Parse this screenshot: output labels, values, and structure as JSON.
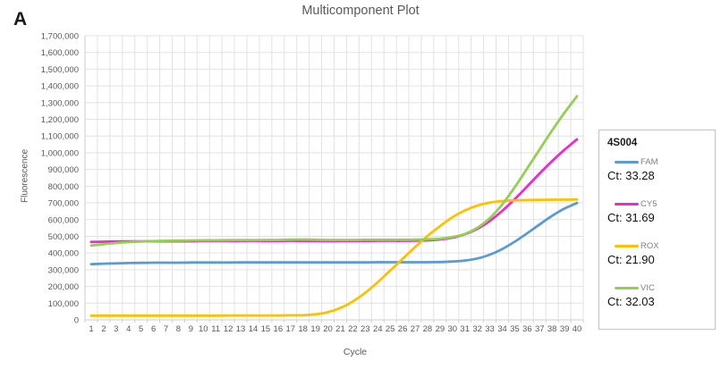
{
  "colors": {
    "title": "#595959",
    "axis_text": "#595959",
    "grid": "#E2E2E2",
    "axis_line": "#CDCDCD",
    "legend_border": "#C3C3C3"
  },
  "figure": {
    "panel_label": "A",
    "title": "Multicomponent Plot",
    "x_axis_label": "Cycle",
    "y_axis_label": "Fluorescence"
  },
  "legend": {
    "title": "4S004",
    "entries": [
      {
        "label": "FAM",
        "ct": "Ct: 33.28"
      },
      {
        "label": "CY5",
        "ct": "Ct: 31.69"
      },
      {
        "label": "ROX",
        "ct": "Ct: 21.90"
      },
      {
        "label": "VIC",
        "ct": "Ct: 32.03"
      }
    ]
  },
  "chart_data": {
    "type": "line",
    "title": "Multicomponent Plot",
    "xlabel": "Cycle",
    "ylabel": "Fluorescence",
    "grid": true,
    "legend_position": "right",
    "xlim": [
      0.5,
      40.5
    ],
    "ylim": [
      0,
      1700000
    ],
    "y_tick_step": 100000,
    "x": [
      1,
      2,
      3,
      4,
      5,
      6,
      7,
      8,
      9,
      10,
      11,
      12,
      13,
      14,
      15,
      16,
      17,
      18,
      19,
      20,
      21,
      22,
      23,
      24,
      25,
      26,
      27,
      28,
      29,
      30,
      31,
      32,
      33,
      34,
      35,
      36,
      37,
      38,
      39,
      40
    ],
    "series": [
      {
        "name": "FAM",
        "ct": 33.28,
        "color": "#5B9BD5",
        "values": [
          333000,
          336000,
          338000,
          340000,
          341000,
          342000,
          342000,
          342000,
          343000,
          343000,
          343000,
          343000,
          344000,
          344000,
          344000,
          344000,
          344000,
          344000,
          344000,
          344000,
          344000,
          344000,
          344000,
          345000,
          345000,
          345000,
          345000,
          345000,
          346000,
          349000,
          355000,
          367000,
          390000,
          424000,
          468000,
          518000,
          571000,
          622000,
          666000,
          699000
        ]
      },
      {
        "name": "CY5",
        "ct": 31.69,
        "color": "#EE28D4",
        "values": [
          466000,
          468000,
          469000,
          470000,
          470000,
          470000,
          470000,
          470000,
          470000,
          471000,
          471000,
          471000,
          471000,
          472000,
          472000,
          472000,
          473000,
          472000,
          472000,
          471000,
          472000,
          472000,
          472000,
          473000,
          473000,
          473000,
          474000,
          476000,
          481000,
          492000,
          512000,
          545000,
          592000,
          652000,
          722000,
          798000,
          876000,
          950000,
          1018000,
          1080000
        ]
      },
      {
        "name": "ROX",
        "ct": 21.9,
        "color": "#FFC000",
        "values": [
          25000,
          25000,
          25000,
          25000,
          25000,
          25000,
          25000,
          25000,
          25000,
          25000,
          25000,
          26000,
          26000,
          26000,
          26000,
          26000,
          27000,
          28000,
          33000,
          46000,
          71000,
          110000,
          162000,
          225000,
          295000,
          365000,
          435000,
          502000,
          561000,
          614000,
          655000,
          684000,
          702000,
          711000,
          715000,
          717000,
          718000,
          719000,
          719000,
          720000
        ]
      },
      {
        "name": "VIC",
        "ct": 32.03,
        "color": "#92D050",
        "values": [
          445000,
          453000,
          460000,
          465000,
          469000,
          471000,
          473000,
          474000,
          475000,
          476000,
          476000,
          477000,
          477000,
          477000,
          478000,
          478000,
          480000,
          481000,
          479000,
          478000,
          478000,
          478000,
          479000,
          479000,
          479000,
          479000,
          480000,
          482000,
          486000,
          496000,
          514000,
          551000,
          609000,
          691000,
          794000,
          906000,
          1020000,
          1133000,
          1240000,
          1338000
        ]
      }
    ]
  }
}
